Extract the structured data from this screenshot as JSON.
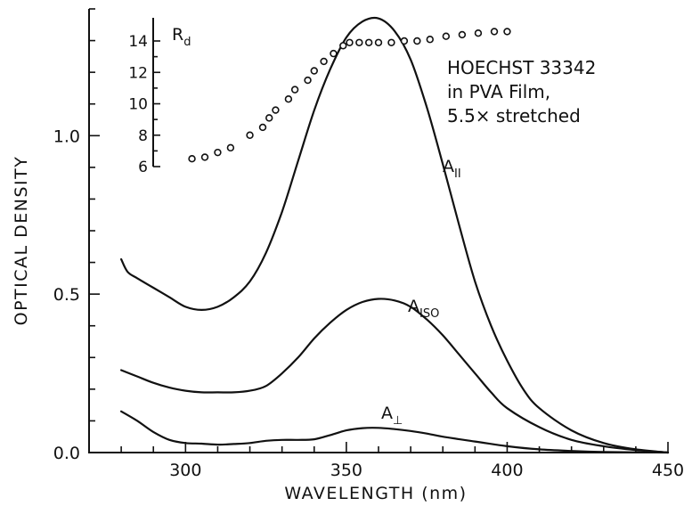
{
  "chart_data": {
    "type": "line",
    "xlabel": "WAVELENGTH (nm)",
    "ylabel": "OPTICAL DENSITY",
    "xlim": [
      270,
      450
    ],
    "ylim": [
      0,
      1.4
    ],
    "x_ticks": [
      300,
      350,
      400,
      450
    ],
    "y_ticks": [
      0.0,
      0.5,
      1.0
    ],
    "x_tick_labels": [
      "300",
      "350",
      "400",
      "450"
    ],
    "y_tick_labels": [
      "0.0",
      "0.5",
      "1.0"
    ],
    "annotation": [
      "HOECHST 33342",
      "in PVA Film,",
      "5.5× stretched"
    ],
    "series": [
      {
        "name": "A",
        "subscript": "II",
        "x": [
          280,
          282,
          285,
          290,
          295,
          300,
          305,
          310,
          315,
          320,
          325,
          330,
          335,
          340,
          345,
          350,
          355,
          360,
          365,
          370,
          375,
          380,
          385,
          390,
          395,
          400,
          405,
          410,
          420,
          430,
          440,
          450
        ],
        "y": [
          0.61,
          0.57,
          0.55,
          0.52,
          0.49,
          0.46,
          0.45,
          0.46,
          0.49,
          0.54,
          0.63,
          0.76,
          0.92,
          1.08,
          1.21,
          1.31,
          1.36,
          1.37,
          1.33,
          1.24,
          1.09,
          0.91,
          0.72,
          0.54,
          0.4,
          0.29,
          0.2,
          0.14,
          0.07,
          0.03,
          0.01,
          0.0
        ]
      },
      {
        "name": "A",
        "subscript": "ISO",
        "x": [
          280,
          285,
          290,
          295,
          300,
          305,
          310,
          315,
          320,
          325,
          330,
          335,
          340,
          345,
          350,
          355,
          360,
          365,
          370,
          375,
          380,
          385,
          390,
          395,
          400,
          410,
          420,
          430,
          440,
          450
        ],
        "y": [
          0.26,
          0.24,
          0.22,
          0.205,
          0.195,
          0.19,
          0.19,
          0.19,
          0.195,
          0.21,
          0.25,
          0.3,
          0.36,
          0.41,
          0.45,
          0.475,
          0.485,
          0.48,
          0.46,
          0.42,
          0.37,
          0.31,
          0.25,
          0.19,
          0.14,
          0.08,
          0.04,
          0.02,
          0.008,
          0.0
        ]
      },
      {
        "name": "A",
        "subscript": "⊥",
        "x": [
          280,
          285,
          290,
          295,
          300,
          305,
          310,
          315,
          320,
          325,
          330,
          335,
          340,
          345,
          350,
          355,
          360,
          365,
          370,
          375,
          380,
          390,
          400,
          410,
          420,
          430,
          450
        ],
        "y": [
          0.13,
          0.1,
          0.065,
          0.04,
          0.03,
          0.028,
          0.025,
          0.027,
          0.03,
          0.037,
          0.04,
          0.04,
          0.042,
          0.055,
          0.07,
          0.077,
          0.078,
          0.074,
          0.068,
          0.06,
          0.05,
          0.035,
          0.02,
          0.01,
          0.005,
          0.002,
          0.0
        ]
      }
    ],
    "inset": {
      "label": "R",
      "label_subscript": "d",
      "ylim": [
        6,
        14
      ],
      "y_ticks": [
        6,
        8,
        10,
        12,
        14
      ],
      "y_tick_labels": [
        "6",
        "8",
        "10",
        "12",
        "14"
      ],
      "points": {
        "x": [
          302,
          306,
          310,
          314,
          320,
          324,
          326,
          328,
          332,
          334,
          338,
          340,
          343,
          346,
          349,
          351,
          354,
          357,
          360,
          364,
          368,
          372,
          376,
          381,
          386,
          391,
          396,
          400
        ],
        "y": [
          6.5,
          6.6,
          6.9,
          7.2,
          8.0,
          8.5,
          9.1,
          9.6,
          10.3,
          10.9,
          11.5,
          12.1,
          12.7,
          13.2,
          13.7,
          13.9,
          13.9,
          13.9,
          13.9,
          13.9,
          14.0,
          14.0,
          14.1,
          14.3,
          14.4,
          14.5,
          14.6,
          14.6
        ]
      }
    }
  }
}
